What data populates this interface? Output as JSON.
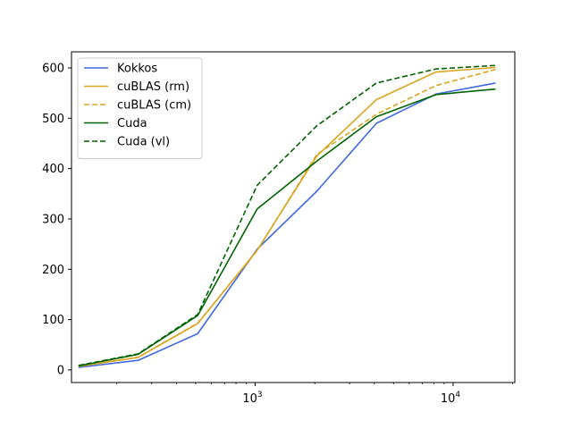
{
  "chart_data": {
    "type": "line",
    "title": "",
    "xlabel": "",
    "ylabel": "",
    "xscale": "log",
    "xlim": [
      118,
      20500
    ],
    "ylim": [
      -25,
      632
    ],
    "grid": false,
    "legend_position": "top-left",
    "x": [
      128,
      256,
      512,
      1024,
      2048,
      4096,
      8192,
      16384
    ],
    "yticks": [
      0,
      100,
      200,
      300,
      400,
      500,
      600
    ],
    "yticks_labels": [
      "0",
      "100",
      "200",
      "300",
      "400",
      "500",
      "600"
    ],
    "xticks_major": [
      1000,
      10000
    ],
    "xticks_major_labels": [
      {
        "base": "10",
        "exp": "3"
      },
      {
        "base": "10",
        "exp": "4"
      }
    ],
    "series": [
      {
        "name": "Kokkos",
        "color": "#4169e1",
        "dash": "solid",
        "values": [
          5,
          19,
          72,
          240,
          355,
          490,
          548,
          570
        ]
      },
      {
        "name": "cuBLAS (rm)",
        "color": "#daa520",
        "dash": "solid",
        "values": [
          7,
          25,
          92,
          238,
          425,
          537,
          592,
          601
        ]
      },
      {
        "name": "cuBLAS (cm)",
        "color": "#daa520",
        "dash": "dashed",
        "values": [
          7,
          25,
          93,
          237,
          428,
          508,
          565,
          597
        ]
      },
      {
        "name": "Cuda",
        "color": "#006400",
        "dash": "solid",
        "values": [
          8,
          31,
          108,
          320,
          415,
          503,
          547,
          558
        ]
      },
      {
        "name": "Cuda (vl)",
        "color": "#006400",
        "dash": "dashed",
        "values": [
          9,
          32,
          110,
          367,
          485,
          570,
          598,
          605
        ]
      }
    ]
  }
}
